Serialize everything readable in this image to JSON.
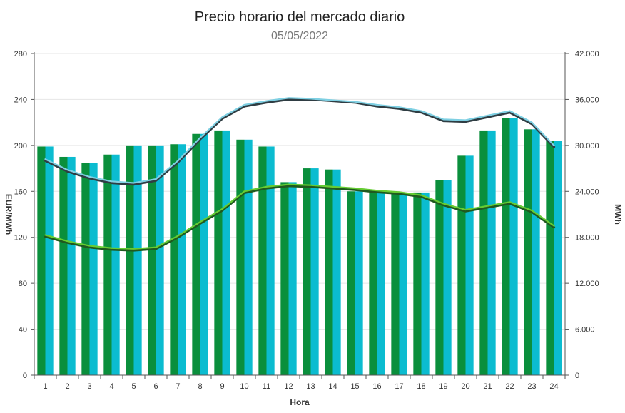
{
  "chart_data": {
    "type": "bar",
    "title": "Precio horario del mercado diario",
    "subtitle": "05/05/2022",
    "xlabel": "Hora",
    "ylabel_left": "EUR/MWh",
    "ylabel_right": "MWh",
    "ylim_left": [
      0,
      280
    ],
    "ylim_right": [
      0,
      42000
    ],
    "yticks_left": [
      "0",
      "40",
      "80",
      "120",
      "160",
      "200",
      "240",
      "280"
    ],
    "yticks_right": [
      "0",
      "6.000",
      "12.000",
      "18.000",
      "24.000",
      "30.000",
      "36.000",
      "42.000"
    ],
    "categories": [
      "1",
      "2",
      "3",
      "4",
      "5",
      "6",
      "7",
      "8",
      "9",
      "10",
      "11",
      "12",
      "13",
      "14",
      "15",
      "16",
      "17",
      "18",
      "19",
      "20",
      "21",
      "22",
      "23",
      "24"
    ],
    "grid": true,
    "bar_series": [
      {
        "color": "#0a8f3c",
        "values": [
          199,
          190,
          185,
          192,
          200,
          200,
          201,
          210,
          213,
          205,
          199,
          168,
          180,
          179,
          160,
          161,
          158,
          159,
          170,
          191,
          213,
          224,
          214,
          204
        ]
      },
      {
        "color": "#0bbcd0",
        "values": [
          199,
          190,
          185,
          192,
          200,
          200,
          201,
          210,
          213,
          205,
          199,
          168,
          180,
          179,
          160,
          161,
          158,
          159,
          170,
          191,
          213,
          224,
          214,
          204
        ]
      }
    ],
    "line_series": [
      {
        "color": "#2f3d43",
        "axis": "right",
        "values": [
          28000,
          26600,
          25700,
          25100,
          24900,
          25400,
          27800,
          30800,
          33500,
          35100,
          35600,
          36000,
          36000,
          35800,
          35600,
          35100,
          34800,
          34300,
          33200,
          33100,
          33700,
          34300,
          32800,
          29800
        ]
      },
      {
        "color": "#7fd0e3",
        "axis": "right",
        "values": [
          28200,
          26800,
          25900,
          25300,
          25100,
          25600,
          28000,
          31000,
          33700,
          35300,
          35800,
          36200,
          36100,
          35900,
          35700,
          35300,
          35000,
          34500,
          33400,
          33300,
          33900,
          34500,
          33000,
          30000
        ]
      },
      {
        "color": "#1f5a1f",
        "axis": "right",
        "values": [
          18100,
          17300,
          16700,
          16400,
          16300,
          16500,
          18000,
          19800,
          21500,
          23800,
          24400,
          24700,
          24600,
          24400,
          24200,
          23900,
          23700,
          23300,
          22200,
          21400,
          21900,
          22400,
          21300,
          19300
        ]
      },
      {
        "color": "#66cc33",
        "axis": "right",
        "values": [
          18300,
          17500,
          16900,
          16600,
          16500,
          16700,
          18200,
          20000,
          21700,
          24000,
          24600,
          24900,
          24800,
          24600,
          24400,
          24100,
          23900,
          23500,
          22400,
          21600,
          22100,
          22600,
          21500,
          19500
        ]
      }
    ]
  }
}
